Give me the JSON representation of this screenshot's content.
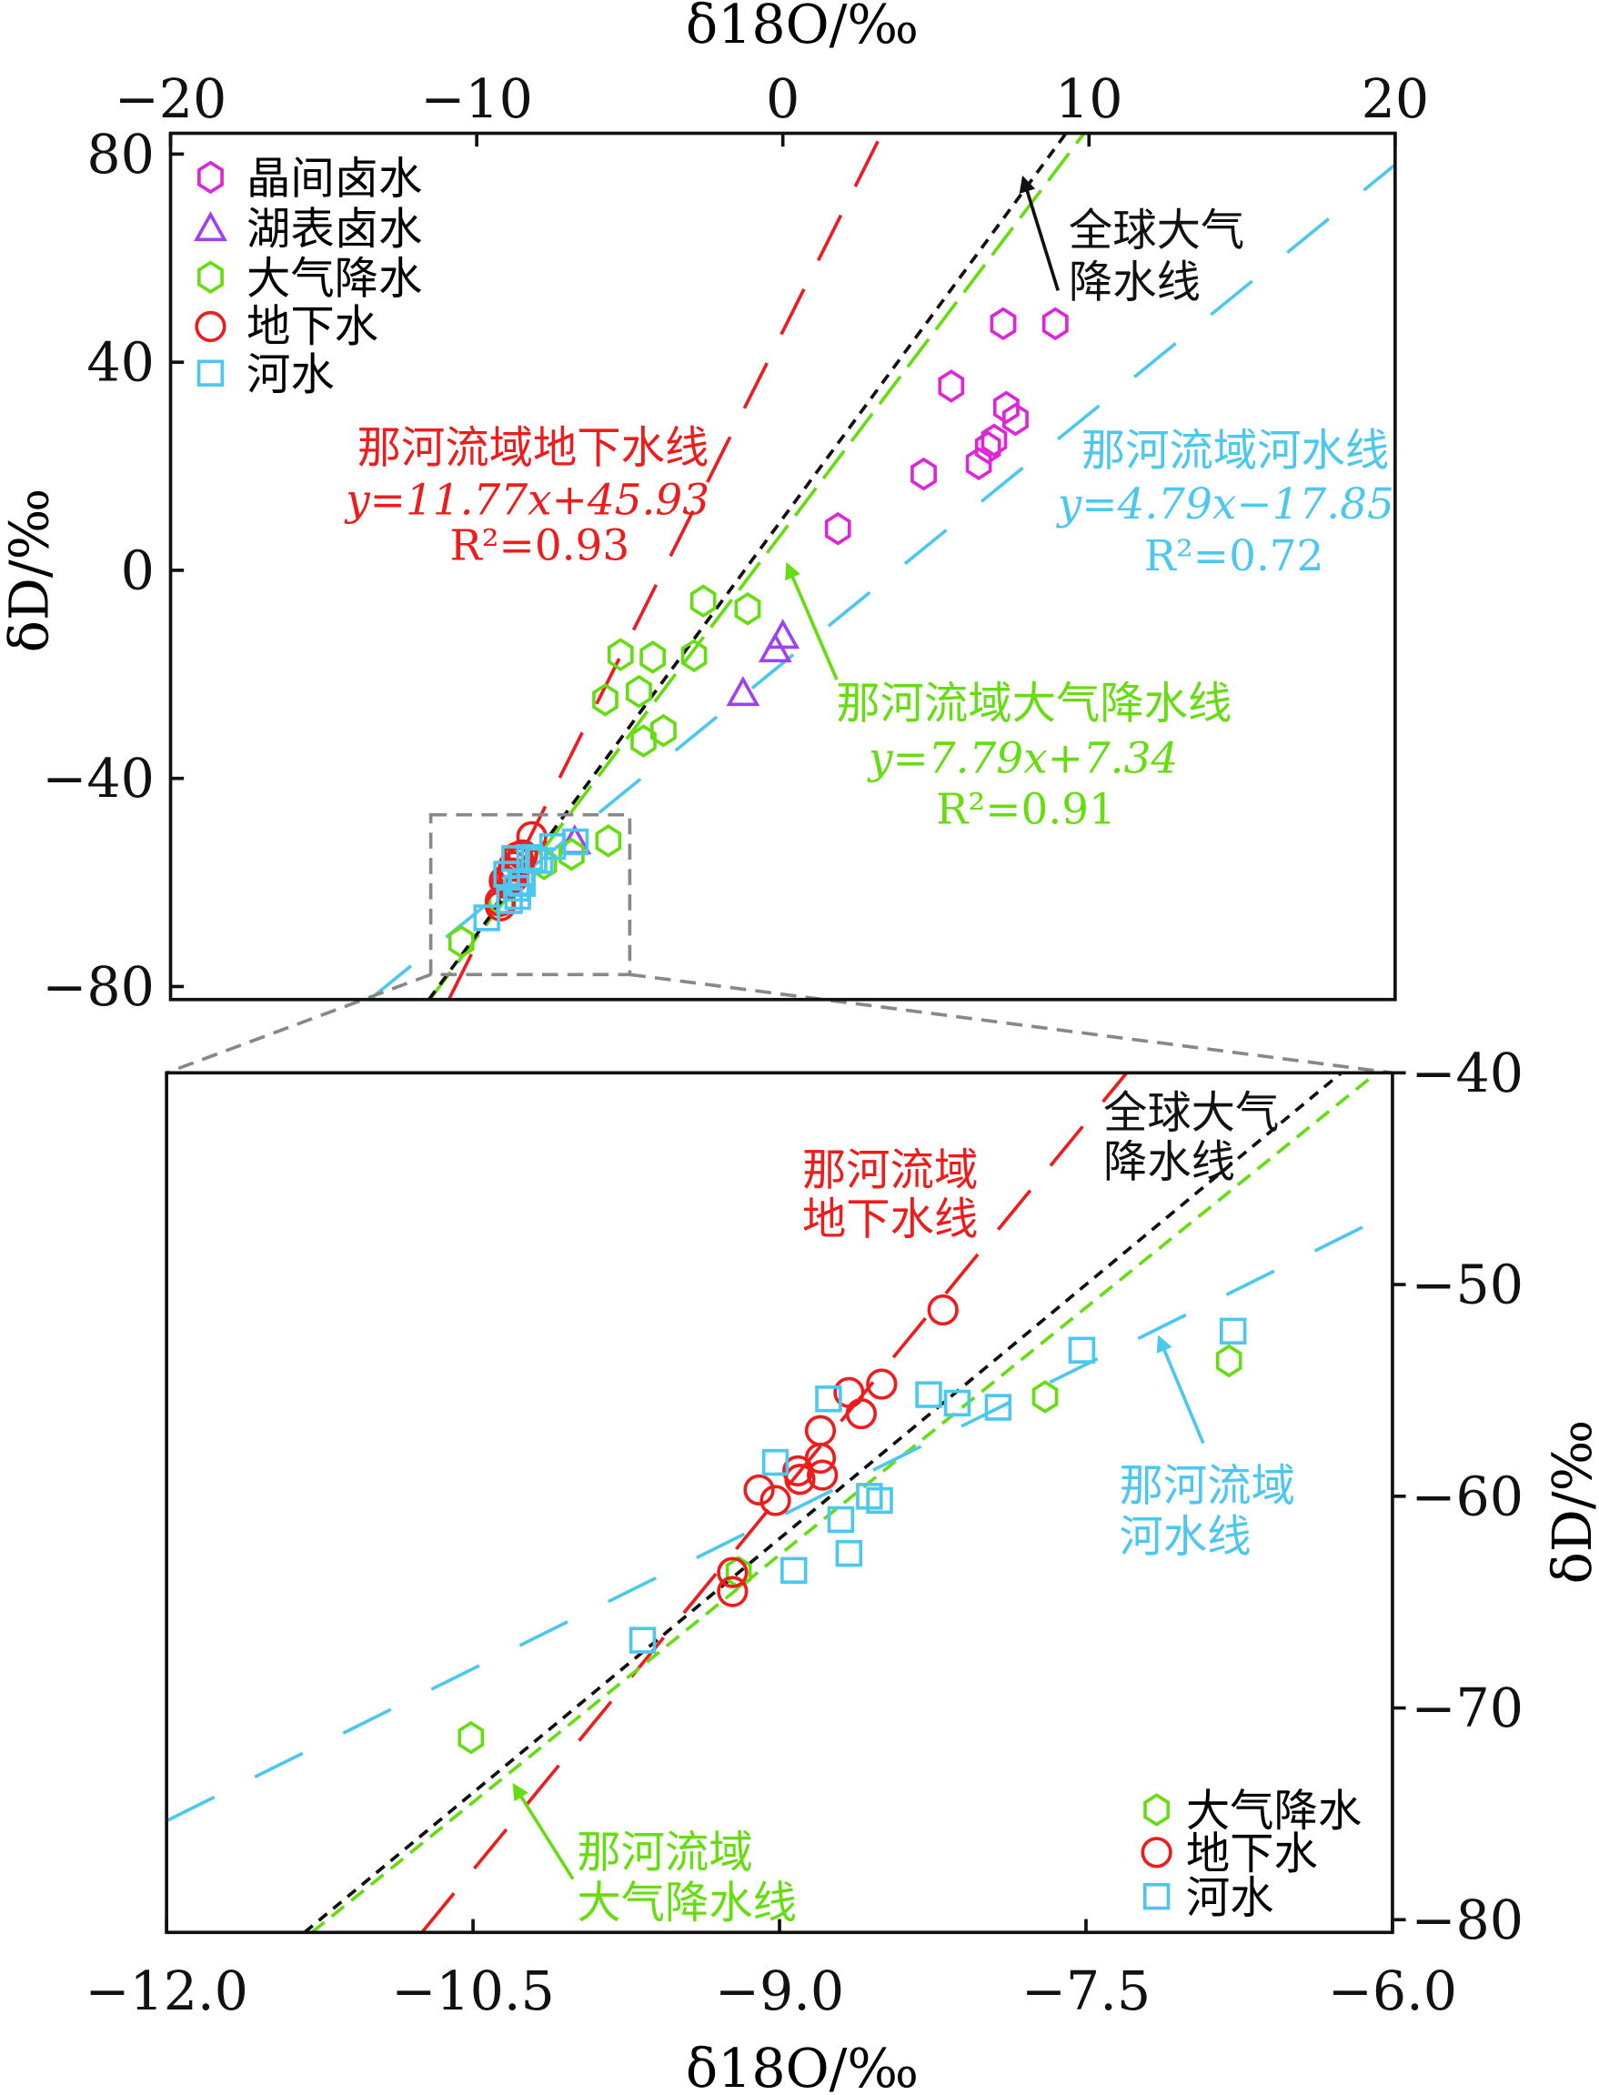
{
  "chart_data": [
    {
      "type": "scatter",
      "panel": "overview",
      "xlabel": "δ18O/‰",
      "ylabel": "δD/‰",
      "xlim": [
        -20,
        20
      ],
      "ylim": [
        -82.5,
        84
      ],
      "xticks": [
        -20,
        -10,
        0,
        10,
        20
      ],
      "xtick_labels": [
        "−20",
        "−10",
        "0",
        "10",
        "20"
      ],
      "yticks": [
        80,
        40,
        0,
        -40,
        -80
      ],
      "ytick_labels": [
        "80",
        "40",
        "0",
        "−40",
        "−80"
      ],
      "legend_position": "top-left",
      "series": [
        {
          "name": "晶间卤水",
          "marker": "hexagon",
          "color": "#e024d8",
          "points": [
            [
              7.2,
              47.4
            ],
            [
              8.9,
              47.4
            ],
            [
              5.5,
              35.4
            ],
            [
              7.3,
              31.3
            ],
            [
              7.6,
              29
            ],
            [
              6.9,
              25
            ],
            [
              6.7,
              23.6
            ],
            [
              6.4,
              20.5
            ],
            [
              4.6,
              18.5
            ],
            [
              1.8,
              8
            ]
          ]
        },
        {
          "name": "湖表卤水",
          "marker": "triangle",
          "color": "#a040f0",
          "points": [
            [
              0,
              -12.8
            ],
            [
              -0.25,
              -15.4
            ],
            [
              -1.3,
              -23.8
            ],
            [
              -6.8,
              -52.3
            ]
          ]
        },
        {
          "name": "大气降水",
          "marker": "hexagon",
          "color": "#66dd11",
          "points": [
            [
              -2.6,
              -5.9
            ],
            [
              -1.15,
              -7.4
            ],
            [
              -5.3,
              -16.2
            ],
            [
              -4.25,
              -16.7
            ],
            [
              -2.9,
              -16.4
            ],
            [
              -4.7,
              -23.3
            ],
            [
              -5.8,
              -24.9
            ],
            [
              -3.9,
              -30.8
            ],
            [
              -4.55,
              -32.8
            ],
            [
              -5.7,
              -52
            ],
            [
              -6.9,
              -54.6
            ],
            [
              -7.8,
              -56.4
            ],
            [
              -9.2,
              -63.6
            ],
            [
              -10.5,
              -71.4
            ]
          ]
        },
        {
          "name": "地下水",
          "marker": "circle",
          "color": "#ee1c1c",
          "points": [
            [
              -8.2,
              -51.2
            ],
            [
              -8.5,
              -54.7
            ],
            [
              -8.66,
              -55.1
            ],
            [
              -8.6,
              -56.1
            ],
            [
              -8.8,
              -56.9
            ],
            [
              -8.8,
              -58.2
            ],
            [
              -8.79,
              -59
            ],
            [
              -8.91,
              -58.8
            ],
            [
              -9.1,
              -59.7
            ],
            [
              -9.02,
              -60.2
            ],
            [
              -9.23,
              -63.6
            ],
            [
              -9.23,
              -64.5
            ]
          ]
        },
        {
          "name": "河水",
          "marker": "square",
          "color": "#4cc8ee",
          "points": [
            [
              -9.02,
              -58.4
            ],
            [
              -8.76,
              -55.4
            ],
            [
              -8.27,
              -55.2
            ],
            [
              -8.13,
              -55.6
            ],
            [
              -7.93,
              -55.8
            ],
            [
              -7.52,
              -53.1
            ],
            [
              -6.78,
              -52.2
            ],
            [
              -8.56,
              -60
            ],
            [
              -8.51,
              -60.2
            ],
            [
              -8.7,
              -61.1
            ],
            [
              -8.66,
              -62.7
            ],
            [
              -8.93,
              -63.5
            ],
            [
              -9.67,
              -66.8
            ]
          ]
        }
      ],
      "lines": [
        {
          "name": "那河流域地下水线",
          "slope": 11.77,
          "intercept": 45.93,
          "color": "#ee1c1c",
          "dash": "38 24"
        },
        {
          "name": "那河流域大气降水线",
          "slope": 7.79,
          "intercept": 7.34,
          "color": "#66dd11",
          "dash": "26 9"
        },
        {
          "name": "那河流域河水线",
          "slope": 4.79,
          "intercept": -17.85,
          "color": "#4cc8ee",
          "dash": "40 34"
        },
        {
          "name": "全球大气降水线",
          "slope": 8,
          "intercept": 10,
          "color": "#111111",
          "dash": "8 6"
        }
      ],
      "zoom_box": {
        "x": [
          -11.5,
          -5.0
        ],
        "y": [
          -47,
          -77.7
        ]
      },
      "annotations": {
        "gw_label": "那河流域地下水线",
        "gw_eq": "y=11.77x+45.93",
        "gw_r2": "R²=0.93",
        "river_label": "那河流域河水线",
        "river_eq": "y=4.79x−17.85",
        "river_r2": "R²=0.72",
        "precip_label": "那河流域大气降水线",
        "precip_eq": "y=7.79x+7.34",
        "precip_r2": "R²=0.91",
        "gmwl_line1": "全球大气",
        "gmwl_line2": "降水线"
      }
    },
    {
      "type": "scatter",
      "panel": "zoom",
      "xlabel": "δ18O/‰",
      "ylabel": "δD/‰",
      "xlim": [
        -12,
        -6
      ],
      "ylim": [
        -80.6,
        -40
      ],
      "xticks": [
        -12,
        -10.5,
        -9,
        -7.5,
        -6
      ],
      "xtick_labels": [
        "−12.0",
        "−10.5",
        "−9.0",
        "−7.5",
        "−6.0"
      ],
      "yticks": [
        -40,
        -50,
        -60,
        -70,
        -80
      ],
      "ytick_labels": [
        "−40",
        "−50",
        "−60",
        "−70",
        "−80"
      ],
      "legend_position": "bottom-right",
      "series": [
        {
          "name": "大气降水",
          "marker": "hexagon",
          "color": "#66dd11",
          "points": [
            [
              -10.51,
              -71.4
            ],
            [
              -9.2,
              -63.6
            ],
            [
              -7.7,
              -55.3
            ],
            [
              -6.8,
              -53.6
            ]
          ]
        },
        {
          "name": "地下水",
          "marker": "circle",
          "color": "#ee1c1c",
          "points": [
            [
              -8.2,
              -51.2
            ],
            [
              -8.5,
              -54.7
            ],
            [
              -8.66,
              -55.1
            ],
            [
              -8.6,
              -56.1
            ],
            [
              -8.8,
              -56.9
            ],
            [
              -8.8,
              -58.2
            ],
            [
              -8.79,
              -59
            ],
            [
              -8.91,
              -58.8
            ],
            [
              -9.1,
              -59.7
            ],
            [
              -9.02,
              -60.2
            ],
            [
              -8.9,
              -59.2
            ],
            [
              -9.23,
              -63.6
            ],
            [
              -9.23,
              -64.5
            ]
          ]
        },
        {
          "name": "河水",
          "marker": "square",
          "color": "#4cc8ee",
          "points": [
            [
              -9.02,
              -58.4
            ],
            [
              -8.76,
              -55.4
            ],
            [
              -8.27,
              -55.2
            ],
            [
              -8.13,
              -55.6
            ],
            [
              -7.93,
              -55.8
            ],
            [
              -7.52,
              -53.1
            ],
            [
              -6.78,
              -52.2
            ],
            [
              -8.56,
              -60
            ],
            [
              -8.51,
              -60.2
            ],
            [
              -8.7,
              -61.1
            ],
            [
              -8.66,
              -62.7
            ],
            [
              -8.93,
              -63.5
            ],
            [
              -9.67,
              -66.8
            ]
          ]
        }
      ],
      "lines": [
        {
          "name": "那河流域地下水线",
          "slope": 11.77,
          "intercept": 45.93,
          "color": "#ee1c1c",
          "dash": "38 24"
        },
        {
          "name": "那河流域大气降水线",
          "slope": 7.79,
          "intercept": 7.34,
          "color": "#66dd11",
          "dash": "12 7"
        },
        {
          "name": "那河流域河水线",
          "slope": 4.79,
          "intercept": -17.85,
          "color": "#4cc8ee",
          "dash": "40 34"
        },
        {
          "name": "全球大气降水线",
          "slope": 8,
          "intercept": 10,
          "color": "#111111",
          "dash": "8 6"
        }
      ],
      "annotations": {
        "gw_line1": "那河流域",
        "gw_line2": "地下水线",
        "gmwl_line1": "全球大气",
        "gmwl_line2": "降水线",
        "river_line1": "那河流域",
        "river_line2": "河水线",
        "precip_line1": "那河流域",
        "precip_line2": "大气降水线"
      }
    }
  ]
}
